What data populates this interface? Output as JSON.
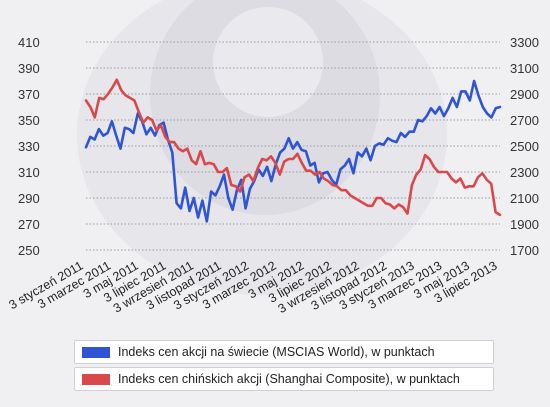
{
  "chart_data": {
    "type": "line",
    "y_left": {
      "ticks": [
        250,
        270,
        290,
        310,
        330,
        350,
        370,
        390,
        410
      ],
      "ylim": [
        250,
        410
      ]
    },
    "y_right": {
      "ticks": [
        1700,
        1900,
        2100,
        2300,
        2500,
        2700,
        2900,
        3100,
        3300
      ],
      "ylim": [
        1700,
        3300
      ]
    },
    "x_tick_labels": [
      "3 styczeń 2011",
      "3 marzec 2011",
      "3 maj 2011",
      "3 lipiec 2011",
      "3 wrzesień 2011",
      "3 listopad 2011",
      "3 styczeń 2012",
      "3 marzec 2012",
      "3 maj 2012",
      "3 lipiec 2012",
      "3 wrzesień 2012",
      "3 listopad 2012",
      "3 styczeń 2013",
      "3 marzec 2013",
      "3 maj 2013",
      "3 lipiec 2013"
    ],
    "grid": true,
    "series": [
      {
        "name": "Indeks cen akcji na świecie (MSCIAS World), w punktach",
        "color": "#2f55d4",
        "axis": "left",
        "values": [
          329,
          337,
          335,
          343,
          338,
          340,
          349,
          338,
          328,
          344,
          343,
          340,
          355,
          349,
          339,
          344,
          338,
          346,
          348,
          335,
          325,
          286,
          282,
          298,
          280,
          290,
          275,
          288,
          272,
          295,
          292,
          299,
          308,
          290,
          281,
          296,
          304,
          282,
          297,
          303,
          312,
          307,
          314,
          303,
          316,
          325,
          328,
          336,
          328,
          333,
          327,
          326,
          315,
          317,
          302,
          309,
          310,
          304,
          300,
          312,
          315,
          320,
          309,
          325,
          322,
          328,
          319,
          330,
          332,
          331,
          336,
          334,
          333,
          340,
          337,
          341,
          341,
          350,
          349,
          353,
          359,
          355,
          360,
          353,
          359,
          367,
          360,
          372,
          372,
          365,
          380,
          369,
          360,
          355,
          352,
          359,
          360
        ]
      },
      {
        "name": "Indeks cen chińskich akcji (Shanghai Composite), w punktach",
        "color": "#d9484a",
        "axis": "right",
        "values": [
          2850,
          2800,
          2720,
          2870,
          2860,
          2900,
          2950,
          3010,
          2930,
          2890,
          2870,
          2850,
          2760,
          2680,
          2720,
          2700,
          2620,
          2660,
          2570,
          2530,
          2530,
          2480,
          2460,
          2480,
          2390,
          2360,
          2460,
          2360,
          2370,
          2360,
          2300,
          2300,
          2330,
          2200,
          2190,
          2150,
          2260,
          2280,
          2230,
          2330,
          2400,
          2390,
          2420,
          2370,
          2280,
          2380,
          2400,
          2400,
          2440,
          2370,
          2310,
          2310,
          2280,
          2300,
          2250,
          2230,
          2200,
          2190,
          2160,
          2160,
          2120,
          2100,
          2080,
          2060,
          2040,
          2040,
          2100,
          2100,
          2060,
          2050,
          2020,
          2050,
          2030,
          1980,
          2200,
          2280,
          2320,
          2430,
          2400,
          2340,
          2300,
          2300,
          2300,
          2250,
          2220,
          2250,
          2180,
          2190,
          2190,
          2260,
          2290,
          2240,
          2210,
          1990,
          1970
        ]
      }
    ]
  }
}
